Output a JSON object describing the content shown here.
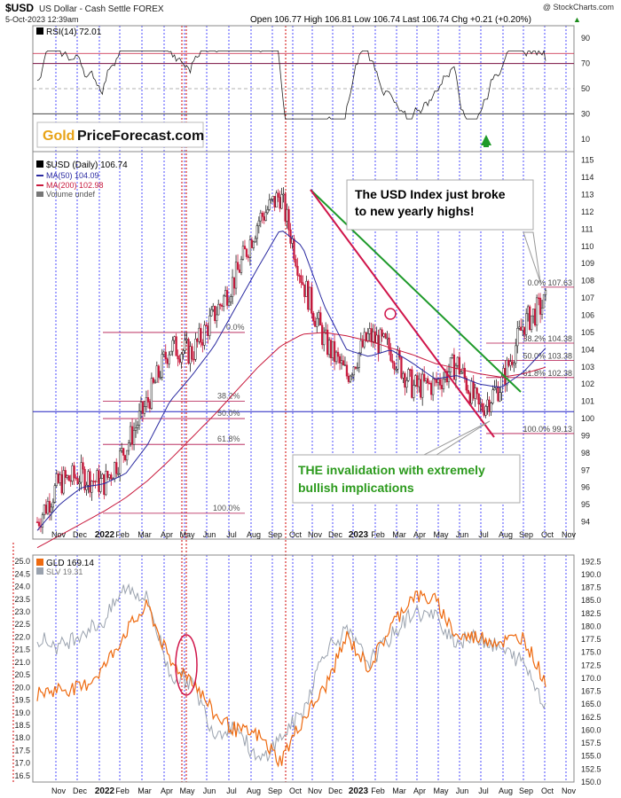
{
  "header": {
    "symbol": "$USD",
    "name": "US Dollar - Cash Settle  FOREX",
    "watermark": "@ StockCharts.com",
    "timestamp": "5-Oct-2023 12:39am",
    "ohlc": "Open 106.77  High 106.81  Low 106.74  Last 106.74  Chg +0.21 (+0.20%)",
    "chg_arrow": "▲"
  },
  "rsi_panel": {
    "legend": "RSI(14) 72.01",
    "y_ticks": [
      "90",
      "70",
      "50",
      "30",
      "10"
    ],
    "levels": [
      70,
      30
    ]
  },
  "logo": {
    "gold": "Gold",
    "rest": "PriceForecast.com"
  },
  "price_panel": {
    "legend": [
      "$USD (Daily) 106.74",
      "MA(50) 104.09",
      "MA(200) 102.98",
      "Volume undef"
    ],
    "y_ticks": [
      "115",
      "114",
      "113",
      "112",
      "111",
      "110",
      "109",
      "108",
      "107",
      "106",
      "105",
      "104",
      "103",
      "102",
      "101",
      "100",
      "99",
      "98",
      "97",
      "96",
      "95",
      "94"
    ]
  },
  "fib_right": {
    "levels": [
      "0.0%  107.63",
      "38.2%  104.38",
      "50.0%  103.38",
      "61.8%  102.38",
      "100.0%  99.13"
    ]
  },
  "fib_left": {
    "levels": [
      "0.0%",
      "38.2%",
      "50.0%",
      "61.8%",
      "100.0%"
    ]
  },
  "annotations": {
    "top_line1": "The USD Index just broke",
    "top_line2": "to new yearly highs!",
    "bottom_line1": "THE invalidation with extremely",
    "bottom_line2": "bullish implications"
  },
  "bottom_panel": {
    "legend_gld": "GLD 169.14",
    "legend_slv": "SLV 19.31",
    "left_ticks": [
      "25.0",
      "24.5",
      "24.0",
      "23.5",
      "23.0",
      "22.5",
      "22.0",
      "21.5",
      "21.0",
      "20.5",
      "20.0",
      "19.5",
      "19.0",
      "18.5",
      "18.0",
      "17.5",
      "17.0",
      "16.5"
    ],
    "right_ticks": [
      "192.5",
      "190.0",
      "187.5",
      "185.0",
      "182.5",
      "180.0",
      "177.5",
      "175.0",
      "172.5",
      "170.0",
      "167.5",
      "165.0",
      "162.5",
      "160.0",
      "157.5",
      "155.0",
      "152.5",
      "150.0"
    ]
  },
  "x_axis": {
    "labels": [
      "Nov",
      "Dec",
      "2022",
      "Feb",
      "Mar",
      "Apr",
      "May",
      "Jun",
      "Jul",
      "Aug",
      "Sep",
      "Oct",
      "Nov",
      "Dec",
      "2023",
      "Feb",
      "Mar",
      "Apr",
      "May",
      "Jun",
      "Jul",
      "Aug",
      "Sep",
      "Oct",
      "Nov"
    ]
  },
  "colors": {
    "ma50": "#2a2aa0",
    "ma200": "#c8193c",
    "green_line": "#1e9a2a",
    "red_line": "#d0154a",
    "gld": "#ee6a10",
    "slv": "#9aa2ae",
    "annotation_green": "#2b9a1c",
    "grid_blue": "#2020ff",
    "grid_red": "#d00000"
  },
  "chart_data": {
    "type": "line",
    "title": "$USD US Dollar - Cash Settle FOREX",
    "panels": [
      {
        "name": "RSI(14)",
        "yrange": [
          0,
          100
        ],
        "levels": [
          70,
          30
        ],
        "last": 72.01
      },
      {
        "name": "$USD (Daily)",
        "yrange": [
          93,
          115.5
        ],
        "x": [
          "Nov 2021",
          "Dec 2021",
          "Jan 2022",
          "Feb 2022",
          "Mar 2022",
          "Apr 2022",
          "May 2022",
          "Jun 2022",
          "Jul 2022",
          "Aug 2022",
          "Sep 2022",
          "Oct 2022",
          "Nov 2022",
          "Dec 2022",
          "Jan 2023",
          "Feb 2023",
          "Mar 2023",
          "Apr 2023",
          "May 2023",
          "Jun 2023",
          "Jul 2023",
          "Aug 2023",
          "Sep 2023",
          "Oct 2023"
        ],
        "series": [
          {
            "name": "$USD (Daily)",
            "values": [
              94.0,
              96.3,
              96.7,
              96.2,
              98.3,
              101.0,
              104.2,
              103.8,
              106.0,
              108.3,
              111.5,
              113.0,
              108.0,
              104.5,
              102.5,
              104.8,
              104.0,
              101.8,
              102.0,
              103.2,
              100.5,
              102.0,
              105.5,
              106.74
            ]
          },
          {
            "name": "MA(50)",
            "values": [
              93.5,
              95.0,
              96.0,
              96.2,
              96.8,
              98.5,
              101.0,
              102.5,
              104.2,
              106.5,
              108.8,
              111.0,
              110.0,
              106.5,
              104.0,
              103.6,
              104.0,
              103.2,
              102.3,
              102.5,
              102.0,
              101.8,
              102.7,
              104.09
            ]
          },
          {
            "name": "MA(200)",
            "values": [
              92.5,
              93.2,
              93.9,
              94.6,
              95.4,
              96.4,
              97.6,
              98.9,
              100.2,
              101.6,
              103.0,
              104.2,
              104.9,
              105.0,
              104.8,
              104.5,
              104.1,
              103.7,
              103.2,
              102.9,
              102.6,
              102.4,
              102.6,
              102.98
            ]
          }
        ],
        "fib_levels": [
          107.63,
          104.38,
          103.38,
          102.38,
          99.13
        ],
        "horizontal_line": 100.4
      },
      {
        "name": "GLD vs SLV",
        "left_range": [
          16.25,
          25.25
        ],
        "right_range": [
          150,
          193.75
        ],
        "series": [
          {
            "name": "GLD",
            "axis": "right",
            "values": [
              167,
              168,
              168,
              172,
              179,
              184,
              173,
              170,
              163,
              160,
              159,
              154,
              162,
              168,
              178,
              172,
              180,
              186,
              185,
              178,
              178,
              177,
              178,
              169.14
            ]
          },
          {
            "name": "SLV",
            "axis": "left",
            "values": [
              22.0,
              21.6,
              22.2,
              22.6,
              24.0,
              23.5,
              20.5,
              20.2,
              18.2,
              18.5,
              17.0,
              18.0,
              19.0,
              21.5,
              22.2,
              21.0,
              22.0,
              23.0,
              22.8,
              21.8,
              22.0,
              21.5,
              21.0,
              19.31
            ]
          }
        ]
      }
    ]
  }
}
